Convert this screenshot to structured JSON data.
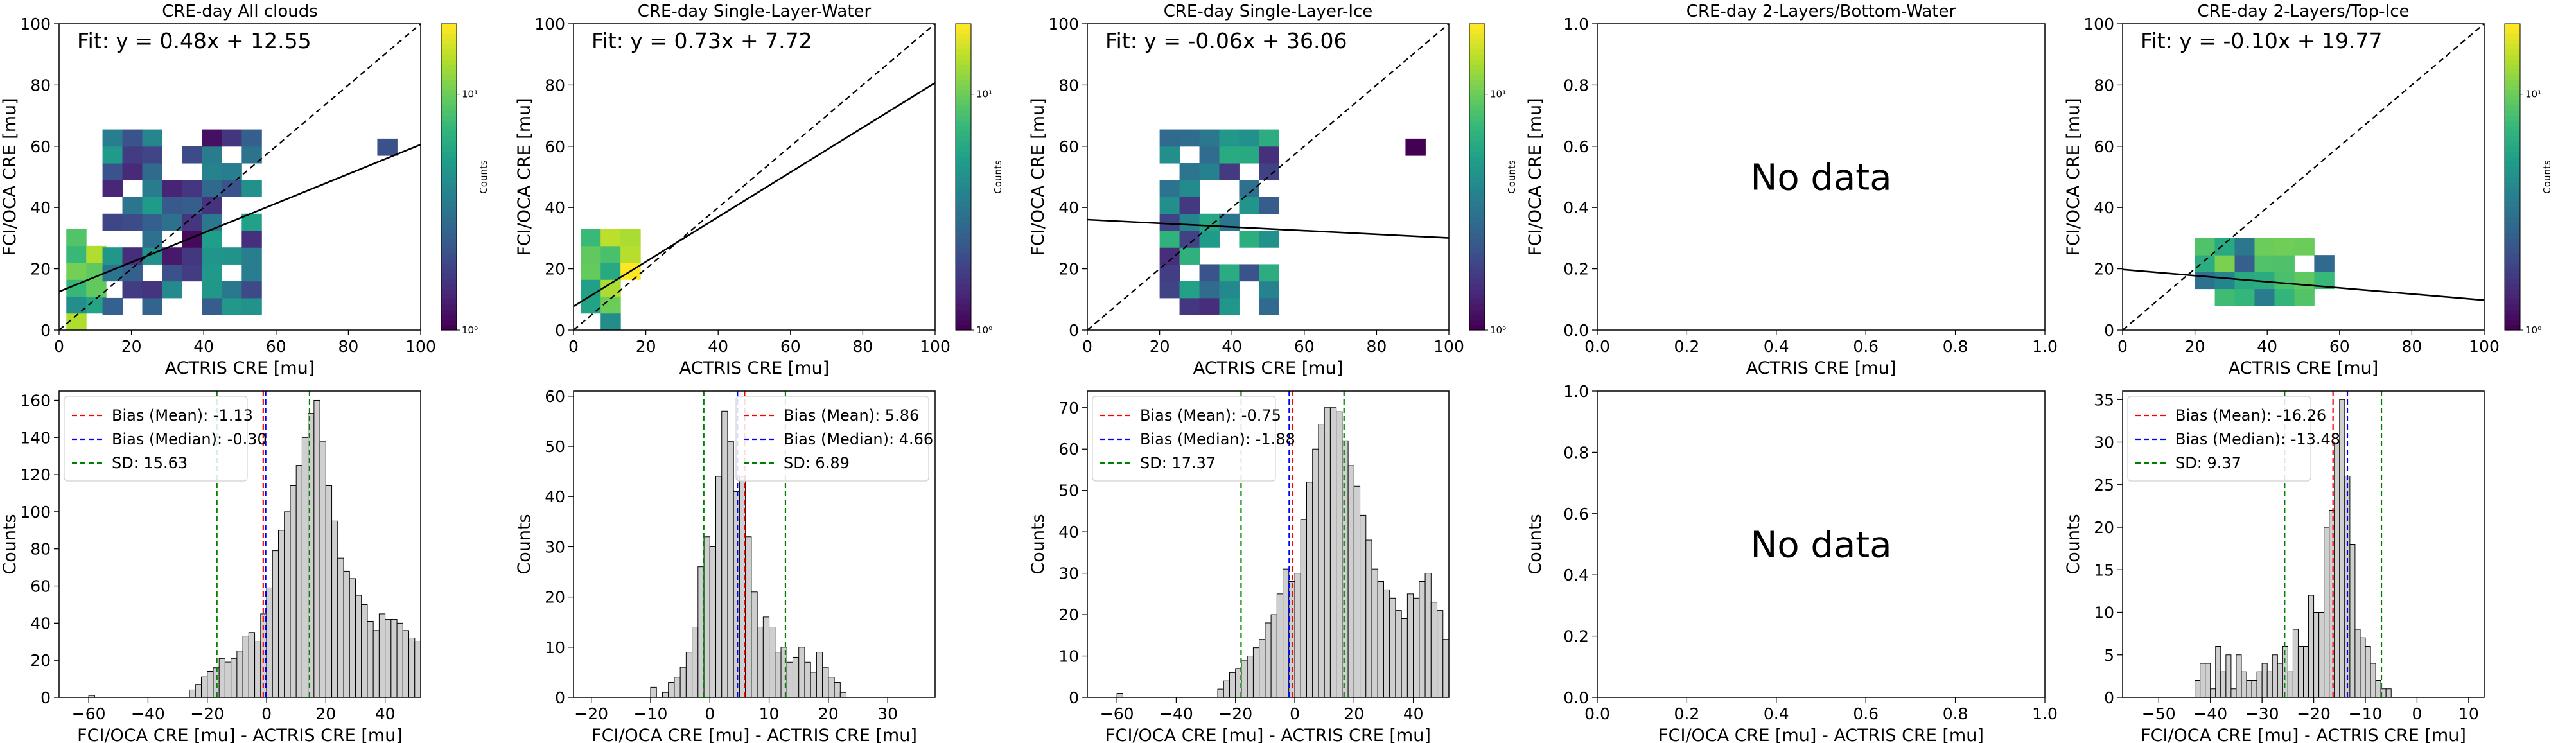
{
  "chart_data": [
    {
      "type": "heatmap",
      "title": "CRE-day All clouds",
      "xlabel": "ACTRIS CRE [mu]",
      "ylabel": "FCI/OCA CRE [mu]",
      "xlim": [
        0,
        100
      ],
      "ylim": [
        0,
        100
      ],
      "xticks": [
        "0",
        "20",
        "40",
        "60",
        "80",
        "100"
      ],
      "yticks": [
        "0",
        "20",
        "40",
        "60",
        "80",
        "100"
      ],
      "fit_label": "Fit: y = 0.48x + 12.55",
      "fit": {
        "slope": 0.48,
        "intercept": 12.55
      },
      "one_to_one_line": true,
      "colorbar": {
        "label": "Counts",
        "scale": "log",
        "ticks": [
          "10⁰",
          "10¹"
        ]
      },
      "clusters": [
        {
          "x": [
            2,
            10
          ],
          "y": [
            0,
            31
          ],
          "intensity": 0.65
        },
        {
          "x": [
            12,
            53
          ],
          "y": [
            5,
            61
          ],
          "intensity": 0.3
        },
        {
          "x": [
            88,
            91
          ],
          "y": [
            57,
            60
          ],
          "intensity": 0.1
        }
      ],
      "has_data": true
    },
    {
      "type": "heatmap",
      "title": "CRE-day Single-Layer-Water",
      "xlabel": "ACTRIS CRE [mu]",
      "ylabel": "FCI/OCA CRE [mu]",
      "xlim": [
        0,
        100
      ],
      "ylim": [
        0,
        100
      ],
      "xticks": [
        "0",
        "20",
        "40",
        "60",
        "80",
        "100"
      ],
      "yticks": [
        "0",
        "20",
        "40",
        "60",
        "80",
        "100"
      ],
      "fit_label": "Fit: y = 0.73x + 7.72",
      "fit": {
        "slope": 0.73,
        "intercept": 7.72
      },
      "one_to_one_line": true,
      "colorbar": {
        "label": "Counts",
        "scale": "log",
        "ticks": [
          "10⁰",
          "10¹"
        ]
      },
      "clusters": [
        {
          "x": [
            2,
            15
          ],
          "y": [
            0,
            31
          ],
          "intensity": 0.75
        }
      ],
      "has_data": true
    },
    {
      "type": "heatmap",
      "title": "CRE-day Single-Layer-Ice",
      "xlabel": "ACTRIS CRE [mu]",
      "ylabel": "FCI/OCA CRE [mu]",
      "xlim": [
        0,
        100
      ],
      "ylim": [
        0,
        100
      ],
      "xticks": [
        "0",
        "20",
        "40",
        "60",
        "80",
        "100"
      ],
      "yticks": [
        "0",
        "20",
        "40",
        "60",
        "80",
        "100"
      ],
      "fit_label": "Fit: y = -0.06x + 36.06",
      "fit": {
        "slope": -0.06,
        "intercept": 36.06
      },
      "one_to_one_line": true,
      "colorbar": {
        "label": "Counts",
        "scale": "log",
        "ticks": [
          "10⁰",
          "10¹"
        ]
      },
      "clusters": [
        {
          "x": [
            20,
            53
          ],
          "y": [
            5,
            61
          ],
          "intensity": 0.4
        },
        {
          "x": [
            88,
            91
          ],
          "y": [
            57,
            60
          ],
          "intensity": 0.1
        }
      ],
      "has_data": true
    },
    {
      "type": "heatmap",
      "title": "CRE-day 2-Layers/Bottom-Water",
      "xlabel": "ACTRIS CRE [mu]",
      "ylabel": "FCI/OCA CRE [mu]",
      "xlim": [
        0,
        1
      ],
      "ylim": [
        0,
        1
      ],
      "xticks": [
        "0.0",
        "0.2",
        "0.4",
        "0.6",
        "0.8",
        "1.0"
      ],
      "yticks": [
        "0.0",
        "0.2",
        "0.4",
        "0.6",
        "0.8",
        "1.0"
      ],
      "annotation": "No data",
      "has_data": false
    },
    {
      "type": "heatmap",
      "title": "CRE-day 2-Layers/Top-Ice",
      "xlabel": "ACTRIS CRE [mu]",
      "ylabel": "FCI/OCA CRE [mu]",
      "xlim": [
        0,
        100
      ],
      "ylim": [
        0,
        100
      ],
      "xticks": [
        "0",
        "20",
        "40",
        "60",
        "80",
        "100"
      ],
      "yticks": [
        "0",
        "20",
        "40",
        "60",
        "80",
        "100"
      ],
      "fit_label": "Fit: y = -0.10x + 19.77",
      "fit": {
        "slope": -0.1,
        "intercept": 19.77
      },
      "one_to_one_line": true,
      "colorbar": {
        "label": "Counts",
        "scale": "log",
        "ticks": [
          "10⁰",
          "10¹"
        ]
      },
      "clusters": [
        {
          "x": [
            20,
            56
          ],
          "y": [
            8,
            29
          ],
          "intensity": 0.55
        }
      ],
      "has_data": true
    },
    {
      "type": "bar",
      "title": "",
      "xlabel": "FCI/OCA CRE [mu] - ACTRIS CRE [mu]",
      "ylabel": "Counts",
      "xlim": [
        -70,
        52
      ],
      "ylim": [
        0,
        165
      ],
      "xticks": [
        -60,
        -40,
        -20,
        0,
        20,
        40
      ],
      "yticks": [
        0,
        20,
        40,
        60,
        80,
        100,
        120,
        140,
        160
      ],
      "bin_width": 2,
      "bins_start": -60,
      "values": [
        1,
        0,
        0,
        0,
        0,
        0,
        0,
        0,
        0,
        0,
        0,
        0,
        0,
        0,
        0,
        0,
        0,
        4,
        7,
        11,
        14,
        16,
        21,
        19,
        21,
        25,
        33,
        35,
        30,
        45,
        59,
        79,
        90,
        100,
        114,
        125,
        140,
        153,
        160,
        138,
        114,
        95,
        75,
        68,
        64,
        55,
        50,
        41,
        36,
        45,
        42,
        42,
        40,
        36,
        32,
        30,
        24,
        21,
        18,
        10,
        4
      ],
      "bias_mean": -1.13,
      "bias_median": -0.3,
      "sd": 15.63,
      "legend": [
        "Bias (Mean): -1.13",
        "Bias (Median): -0.30",
        "SD: 15.63"
      ],
      "legend_position": "top-left",
      "has_data": true
    },
    {
      "type": "bar",
      "title": "",
      "xlabel": "FCI/OCA CRE [mu] - ACTRIS CRE [mu]",
      "ylabel": "Counts",
      "xlim": [
        -23,
        38
      ],
      "ylim": [
        0,
        61
      ],
      "xticks": [
        -20,
        -10,
        0,
        10,
        20,
        30
      ],
      "yticks": [
        0,
        10,
        20,
        30,
        40,
        50,
        60
      ],
      "bin_width": 1,
      "bins_start": -10,
      "values": [
        2,
        0,
        1,
        3,
        4,
        6,
        9,
        14,
        26,
        32,
        30,
        44,
        57,
        51,
        41,
        44,
        32,
        21,
        14,
        16,
        14,
        9,
        10,
        7,
        8,
        10,
        7,
        5,
        9,
        6,
        4,
        3,
        1
      ],
      "bias_mean": 5.86,
      "bias_median": 4.66,
      "sd": 6.89,
      "legend": [
        "Bias (Mean): 5.86",
        "Bias (Median): 4.66",
        "SD: 6.89"
      ],
      "legend_position": "top-right",
      "has_data": true
    },
    {
      "type": "bar",
      "title": "",
      "xlabel": "FCI/OCA CRE [mu] - ACTRIS CRE [mu]",
      "ylabel": "Counts",
      "xlim": [
        -70,
        52
      ],
      "ylim": [
        0,
        74
      ],
      "xticks": [
        -60,
        -40,
        -20,
        0,
        20,
        40
      ],
      "yticks": [
        0,
        10,
        20,
        30,
        40,
        50,
        60,
        70
      ],
      "bin_width": 2,
      "bins_start": -60,
      "values": [
        1,
        0,
        0,
        0,
        0,
        0,
        0,
        0,
        0,
        0,
        0,
        0,
        0,
        0,
        0,
        0,
        0,
        2,
        4,
        6,
        7,
        9,
        10,
        12,
        14,
        18,
        20,
        25,
        31,
        28,
        30,
        43,
        52,
        60,
        66,
        70,
        70,
        69,
        62,
        56,
        51,
        44,
        38,
        31,
        28,
        26,
        24,
        21,
        19,
        25,
        24,
        28,
        30,
        23,
        21,
        14,
        10,
        6,
        4,
        0,
        0
      ],
      "bias_mean": -0.75,
      "bias_median": -1.88,
      "sd": 17.37,
      "legend": [
        "Bias (Mean): -0.75",
        "Bias (Median): -1.88",
        "SD: 17.37"
      ],
      "legend_position": "top-left",
      "has_data": true
    },
    {
      "type": "bar",
      "title": "",
      "xlabel": "FCI/OCA CRE [mu] - ACTRIS CRE [mu]",
      "ylabel": "Counts",
      "xlim": [
        0,
        1
      ],
      "ylim": [
        0,
        1
      ],
      "xticks": [
        "0.0",
        "0.2",
        "0.4",
        "0.6",
        "0.8",
        "1.0"
      ],
      "yticks": [
        "0.0",
        "0.2",
        "0.4",
        "0.6",
        "0.8",
        "1.0"
      ],
      "annotation": "No data",
      "has_data": false
    },
    {
      "type": "bar",
      "title": "",
      "xlabel": "FCI/OCA CRE [mu] - ACTRIS CRE [mu]",
      "ylabel": "Counts",
      "xlim": [
        -57,
        13
      ],
      "ylim": [
        0,
        36
      ],
      "xticks": [
        -50,
        -40,
        -30,
        -20,
        -10,
        0,
        10
      ],
      "yticks": [
        0,
        5,
        10,
        15,
        20,
        25,
        30,
        35
      ],
      "bin_width": 1,
      "bins_start": -43,
      "values": [
        2,
        4,
        4,
        1,
        6,
        3,
        5,
        1,
        5,
        3,
        2,
        2,
        3,
        4,
        3,
        5,
        4,
        6,
        3,
        8,
        6,
        6,
        12,
        10,
        10,
        20,
        22,
        30,
        35,
        26,
        18,
        8,
        7,
        6,
        4,
        2,
        1,
        1
      ],
      "bias_mean": -16.26,
      "bias_median": -13.48,
      "sd": 9.37,
      "legend": [
        "Bias (Mean): -16.26",
        "Bias (Median): -13.48",
        "SD: 9.37"
      ],
      "legend_position": "top-left",
      "has_data": true
    }
  ]
}
